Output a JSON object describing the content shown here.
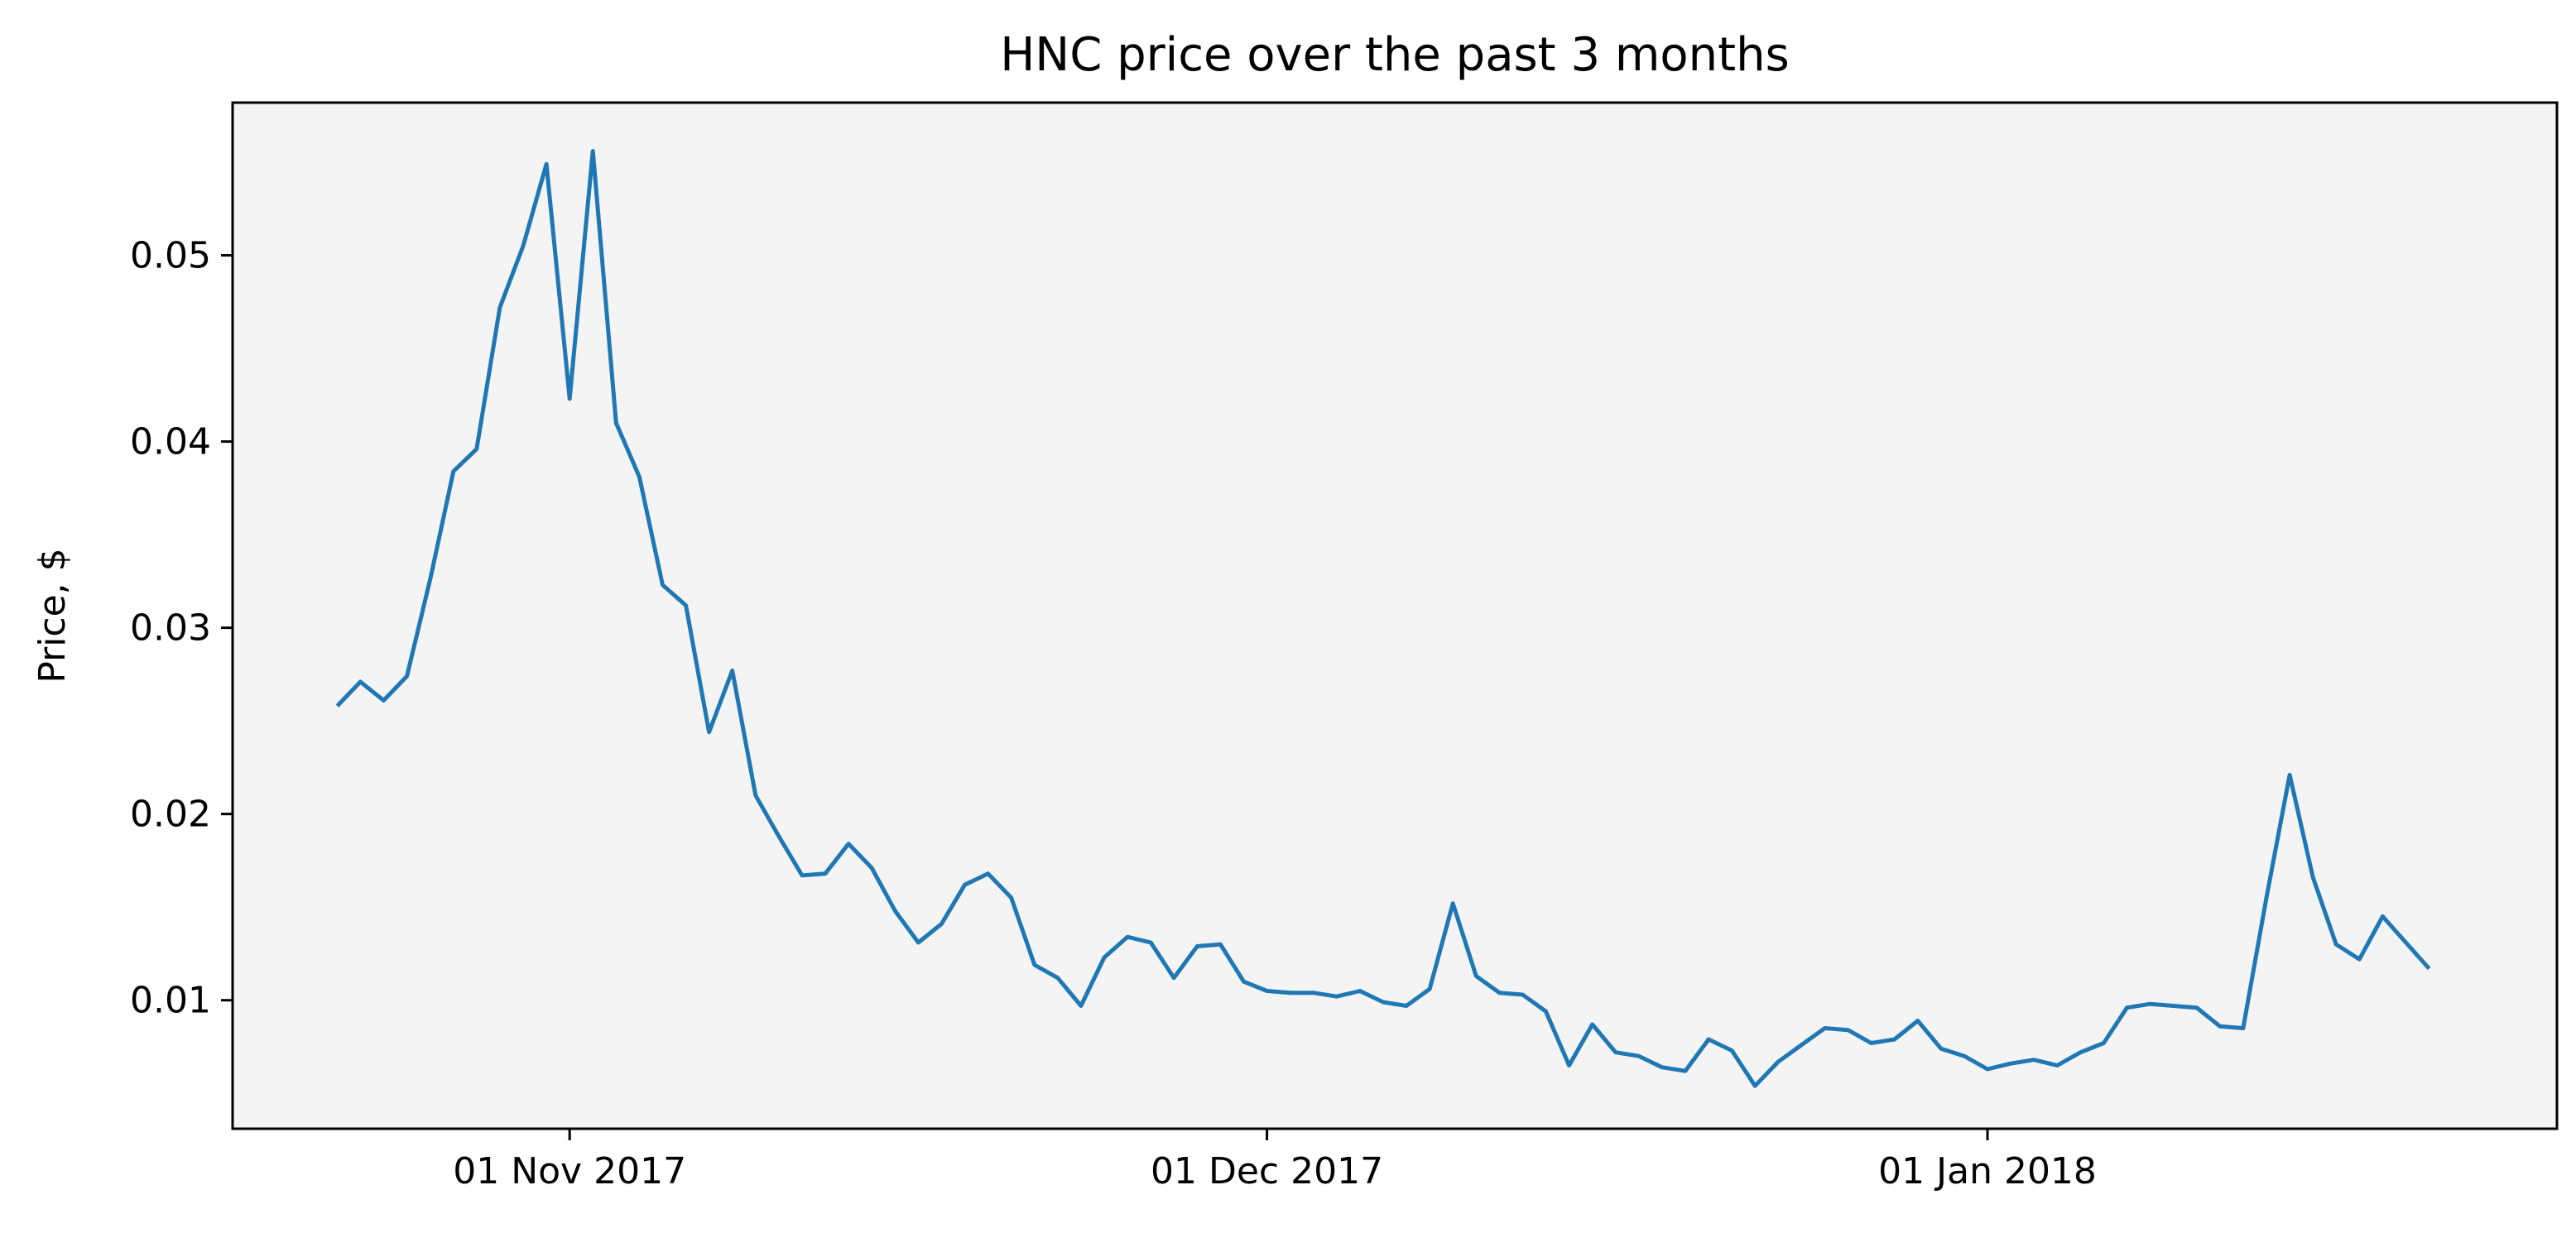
{
  "chart_data": {
    "type": "line",
    "title": "HNC price over the past 3 months",
    "xlabel": "",
    "ylabel": "Price, $",
    "grid": false,
    "background_color": "#f4f4f4",
    "line_color": "#1f77b4",
    "x_start_date": "2017-10-17",
    "x_step_days": 1,
    "xlim_days_from_start": [
      -4.5,
      95.5
    ],
    "ylim": [
      0.0031,
      0.0582
    ],
    "y_ticks": [
      {
        "value": 0.01,
        "label": "0.01"
      },
      {
        "value": 0.02,
        "label": "0.02"
      },
      {
        "value": 0.03,
        "label": "0.03"
      },
      {
        "value": 0.04,
        "label": "0.04"
      },
      {
        "value": 0.05,
        "label": "0.05"
      }
    ],
    "x_ticks": [
      {
        "day": 10,
        "label": "01 Nov 2017"
      },
      {
        "day": 40,
        "label": "01 Dec 2017"
      },
      {
        "day": 71,
        "label": "01 Jan 2018"
      }
    ],
    "series": [
      {
        "name": "HNC",
        "values": [
          0.0258,
          0.0271,
          0.0261,
          0.0274,
          0.0326,
          0.0384,
          0.0396,
          0.0472,
          0.0505,
          0.0549,
          0.0423,
          0.0556,
          0.041,
          0.0381,
          0.0323,
          0.0312,
          0.0244,
          0.0277,
          0.021,
          0.0188,
          0.0167,
          0.0168,
          0.0184,
          0.0171,
          0.0148,
          0.0131,
          0.0141,
          0.0162,
          0.0168,
          0.0155,
          0.0119,
          0.0112,
          0.0097,
          0.0123,
          0.0134,
          0.0131,
          0.0112,
          0.0129,
          0.013,
          0.011,
          0.0105,
          0.0104,
          0.0104,
          0.0102,
          0.0105,
          0.0099,
          0.0097,
          0.0106,
          0.0152,
          0.0113,
          0.0104,
          0.0103,
          0.0094,
          0.0065,
          0.0087,
          0.0072,
          0.007,
          0.0064,
          0.0062,
          0.0079,
          0.0073,
          0.0054,
          0.0067,
          0.0076,
          0.0085,
          0.0084,
          0.0077,
          0.0079,
          0.0089,
          0.0074,
          0.007,
          0.0063,
          0.0066,
          0.0068,
          0.0065,
          0.0072,
          0.0077,
          0.0096,
          0.0098,
          0.0097,
          0.0096,
          0.0086,
          0.0085,
          0.0155,
          0.0221,
          0.0166,
          0.013,
          0.0122,
          0.0145,
          0.0131,
          0.0117
        ]
      }
    ]
  }
}
